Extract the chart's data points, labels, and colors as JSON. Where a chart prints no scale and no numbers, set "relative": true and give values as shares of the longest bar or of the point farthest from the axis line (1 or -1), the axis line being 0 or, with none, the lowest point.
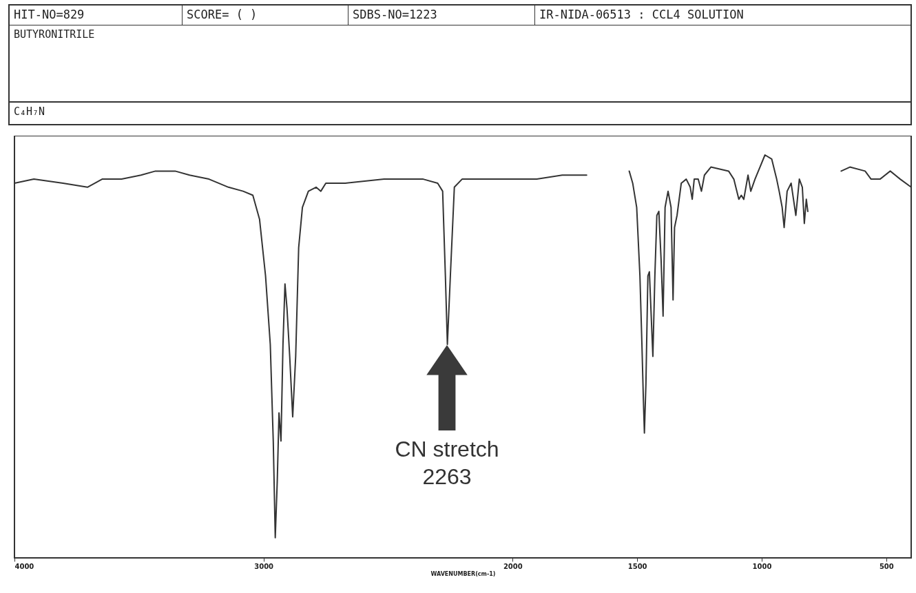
{
  "chart_data": {
    "type": "line",
    "title": "BUTYRONITRILE",
    "subtitle": "C₄H₇N",
    "xlabel": "WAVENUMBER(cm-1)",
    "annotations": [
      "HIT-NO=829",
      "SCORE= (   )",
      "SDBS-NO=1223",
      "IR-NIDA-06513 : CCL4 SOLUTION",
      "CN stretch\n2263"
    ],
    "relative": true,
    "grid": false,
    "marker": "none",
    "line_style": "solid",
    "xlim": [
      4000,
      400
    ],
    "xticks": [
      4000,
      3000,
      2000,
      1500,
      1000,
      500
    ],
    "series": [
      {
        "color": "#333333",
        "x": [
          4000,
          3922,
          3805,
          3707,
          3648,
          3570,
          3492,
          3434,
          3355,
          3297,
          3219,
          3141,
          3082,
          3043,
          3016,
          2992,
          2973,
          2961,
          2953,
          2945,
          2938,
          2930,
          2922,
          2914,
          2906,
          2895,
          2883,
          2871,
          2859,
          2844,
          2820,
          2789,
          2770,
          2750,
          2672,
          2516,
          2359,
          2301,
          2281,
          2270,
          2262,
          2250,
          2234,
          2203,
          2047,
          1903,
          1801,
          1703,
          1650,
          1532,
          1518,
          1502,
          1489,
          1481,
          1475,
          1471,
          1465,
          1457,
          1451,
          1445,
          1437,
          1429,
          1421,
          1413,
          1404,
          1396,
          1388,
          1376,
          1364,
          1356,
          1350,
          1340,
          1323,
          1303,
          1287,
          1279,
          1271,
          1255,
          1242,
          1230,
          1204,
          1133,
          1112,
          1092,
          1082,
          1072,
          1055,
          1044,
          1027,
          1007,
          987,
          960,
          940,
          930,
          918,
          910,
          898,
          882,
          863,
          849,
          837,
          829,
          821,
          815,
          750,
          681,
          646,
          585,
          561,
          525,
          484,
          444,
          400
        ],
        "values": [
          0.93,
          0.94,
          0.93,
          0.92,
          0.94,
          0.94,
          0.95,
          0.96,
          0.96,
          0.95,
          0.94,
          0.92,
          0.91,
          0.9,
          0.84,
          0.7,
          0.53,
          0.29,
          0.05,
          0.19,
          0.36,
          0.29,
          0.53,
          0.68,
          0.62,
          0.5,
          0.35,
          0.5,
          0.77,
          0.87,
          0.91,
          0.92,
          0.91,
          0.93,
          0.93,
          0.94,
          0.94,
          0.93,
          0.91,
          0.7,
          0.53,
          0.7,
          0.92,
          0.94,
          0.94,
          0.94,
          0.95,
          0.95,
          null,
          0.96,
          0.93,
          0.87,
          0.7,
          0.53,
          0.39,
          0.31,
          0.43,
          0.7,
          0.71,
          0.62,
          0.5,
          0.7,
          0.85,
          0.86,
          0.74,
          0.6,
          0.87,
          0.91,
          0.87,
          0.64,
          0.82,
          0.85,
          0.93,
          0.94,
          0.92,
          0.89,
          0.94,
          0.94,
          0.91,
          0.95,
          0.97,
          0.96,
          0.94,
          0.89,
          0.9,
          0.89,
          0.95,
          0.91,
          0.94,
          0.97,
          1.0,
          0.99,
          0.94,
          0.91,
          0.87,
          0.82,
          0.91,
          0.93,
          0.85,
          0.94,
          0.92,
          0.83,
          0.89,
          0.86,
          null,
          0.96,
          0.97,
          0.96,
          0.94,
          0.94,
          0.96,
          0.94,
          0.92
        ]
      }
    ]
  }
}
